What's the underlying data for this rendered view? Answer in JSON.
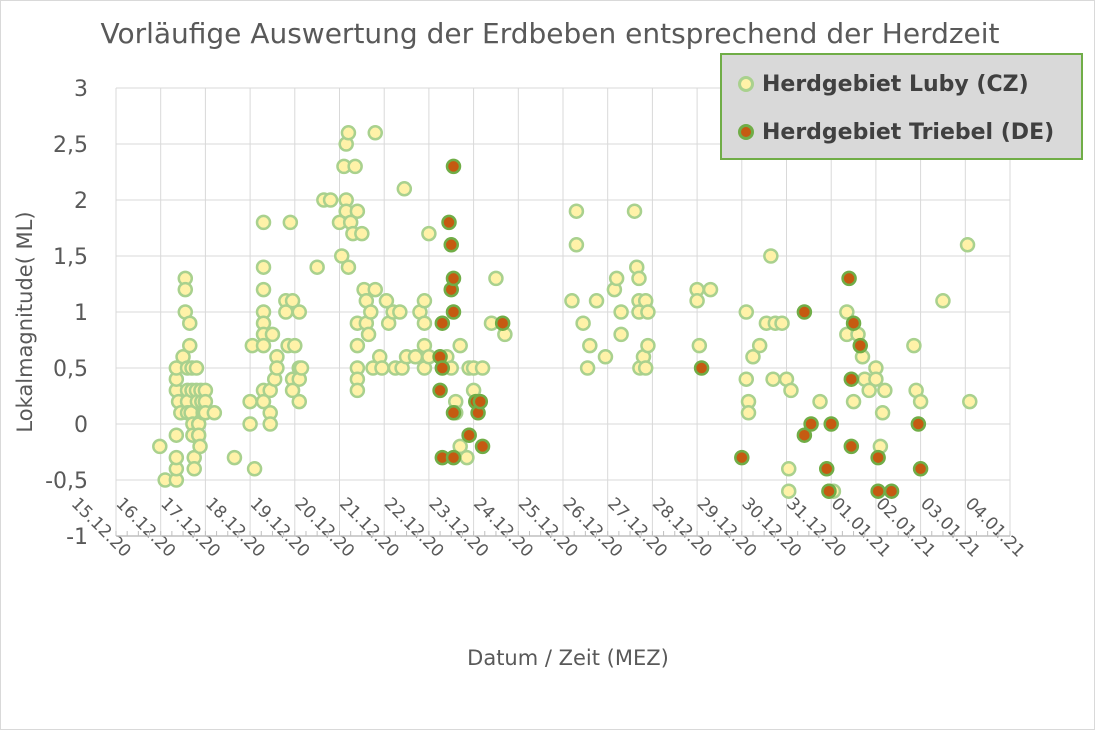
{
  "chart_data": {
    "type": "scatter",
    "title": "Vorläufige Auswertung der Erdbeben entsprechend der Herdzeit",
    "xlabel": "Datum / Zeit (MEZ)",
    "ylabel": "Lokalmagnitude( ML)",
    "ylim": [
      -1,
      3
    ],
    "y_ticks": [
      "-1",
      "-0,5",
      "0",
      "0,5",
      "1",
      "1,5",
      "2",
      "2,5",
      "3"
    ],
    "x_ticks": [
      "15.12.20",
      "16.12.20",
      "17.12.20",
      "18.12.20",
      "19.12.20",
      "20.12.20",
      "21.12.20",
      "22.12.20",
      "23.12.20",
      "24.12.20",
      "25.12.20",
      "26.12.20",
      "27.12.20",
      "28.12.20",
      "29.12.20",
      "30.12.20",
      "31.12.20",
      "01.01.21",
      "02.01.21",
      "03.01.21",
      "04.01.21"
    ],
    "grid": true,
    "legend_position": "top-right",
    "series": [
      {
        "name": "Herdgebiet Luby (CZ)",
        "color": "#fff2a8",
        "edge": "#a9d18e",
        "x": [
          16.0,
          16.1,
          16.3,
          16.3,
          16.3,
          16.35,
          16.35,
          16.4,
          16.4,
          16.45,
          16.5,
          16.5,
          16.55,
          16.6,
          16.6,
          16.62,
          16.65,
          16.7,
          16.7,
          16.7,
          16.7,
          16.7,
          16.75,
          16.75,
          16.8,
          16.8,
          16.85,
          16.85,
          16.9,
          16.9,
          16.9,
          16.95,
          17.0,
          17.0,
          17.2,
          17.65,
          18.0,
          18.0,
          18.0,
          18.1,
          18.1,
          18.2,
          18.2,
          18.3,
          18.3,
          18.3,
          18.35,
          18.35,
          18.35,
          18.5,
          18.5,
          18.5,
          18.55,
          18.6,
          18.8,
          18.8,
          18.9,
          18.9,
          19.0,
          19.0,
          19.05,
          19.05,
          19.1,
          19.15,
          19.2,
          19.2,
          19.3,
          19.4,
          19.5,
          19.6,
          19.8,
          19.9,
          20.0,
          20.0,
          20.05,
          20.05,
          20.1,
          20.1,
          20.2,
          20.25,
          20.3,
          20.35,
          20.4,
          20.4,
          20.4,
          20.45,
          20.5,
          20.5,
          20.5,
          20.6,
          20.7,
          20.7,
          20.8,
          20.8,
          20.9,
          21.0,
          21.0,
          21.05,
          21.1,
          21.2,
          21.2,
          21.25,
          21.3,
          21.4,
          21.5,
          21.6,
          21.7,
          21.8,
          21.8,
          21.9,
          21.9,
          22.0,
          22.0,
          22.0,
          22.3,
          22.5,
          22.5,
          22.9,
          23.0,
          23.0,
          23.0,
          23.05,
          23.1,
          23.15,
          23.3,
          23.5,
          23.6,
          23.65,
          23.9,
          23.95,
          24.3,
          24.4,
          24.9,
          25.1,
          25.3,
          25.5,
          26.4,
          26.6,
          26.8,
          26.8,
          26.9,
          27.0,
          27.0,
          27.2,
          27.3,
          27.3,
          27.35,
          27.4,
          27.45,
          27.5,
          27.6,
          27.65,
          27.7,
          27.75,
          27.8,
          27.9,
          28.0,
          28.1,
          28.2,
          28.25,
          28.5,
          29.0,
          29.0,
          29.2,
          29.4,
          29.8,
          30.0,
          30.0,
          30.0,
          30.05,
          30.1,
          30.2,
          30.2,
          30.3,
          30.4,
          30.6,
          30.9,
          30.9,
          30.95,
          31.1,
          31.4,
          31.5,
          31.7,
          31.8,
          32.0,
          32.1,
          32.25,
          32.4,
          32.5,
          32.55,
          32.65,
          32.75,
          32.85,
          32.9,
          33.0,
          33.1,
          33.2,
          33.3,
          33.6,
          33.7,
          34.0,
          34.1,
          34.2,
          34.6,
          34.8,
          35.0,
          35.1,
          35.15,
          35.6,
          35.75,
          36.0,
          36.0,
          36.3,
          36.5,
          36.8,
          37.3,
          37.5,
          37.6,
          37.9,
          38.4,
          39.0,
          39.3,
          39.9,
          40.1,
          40.1,
          40.2,
          40.4,
          40.4,
          40.5,
          40.7,
          41.0,
          41.1,
          41.4,
          41.6,
          41.9,
          42.0,
          42.3,
          42.3,
          43.0,
          43.1,
          43.4,
          43.5,
          43.5,
          43.6,
          43.6,
          43.7,
          44.0,
          44.0,
          44.2,
          44.3,
          44.3,
          45.0,
          45.1,
          45.3,
          45.4,
          45.5,
          45.6,
          46.0,
          46.1,
          46.1,
          46.7,
          46.9,
          47.1,
          47.2,
          47.6,
          48.2,
          48.9
        ]
      }
    ]
  },
  "legend": {
    "items": [
      {
        "label": "Herdgebiet Luby (CZ)",
        "fill": "#fff2a8",
        "edge": "#a9d18e"
      },
      {
        "label": "Herdgebiet Triebel (DE)",
        "fill": "#c55a11",
        "edge": "#70ad47"
      }
    ]
  }
}
